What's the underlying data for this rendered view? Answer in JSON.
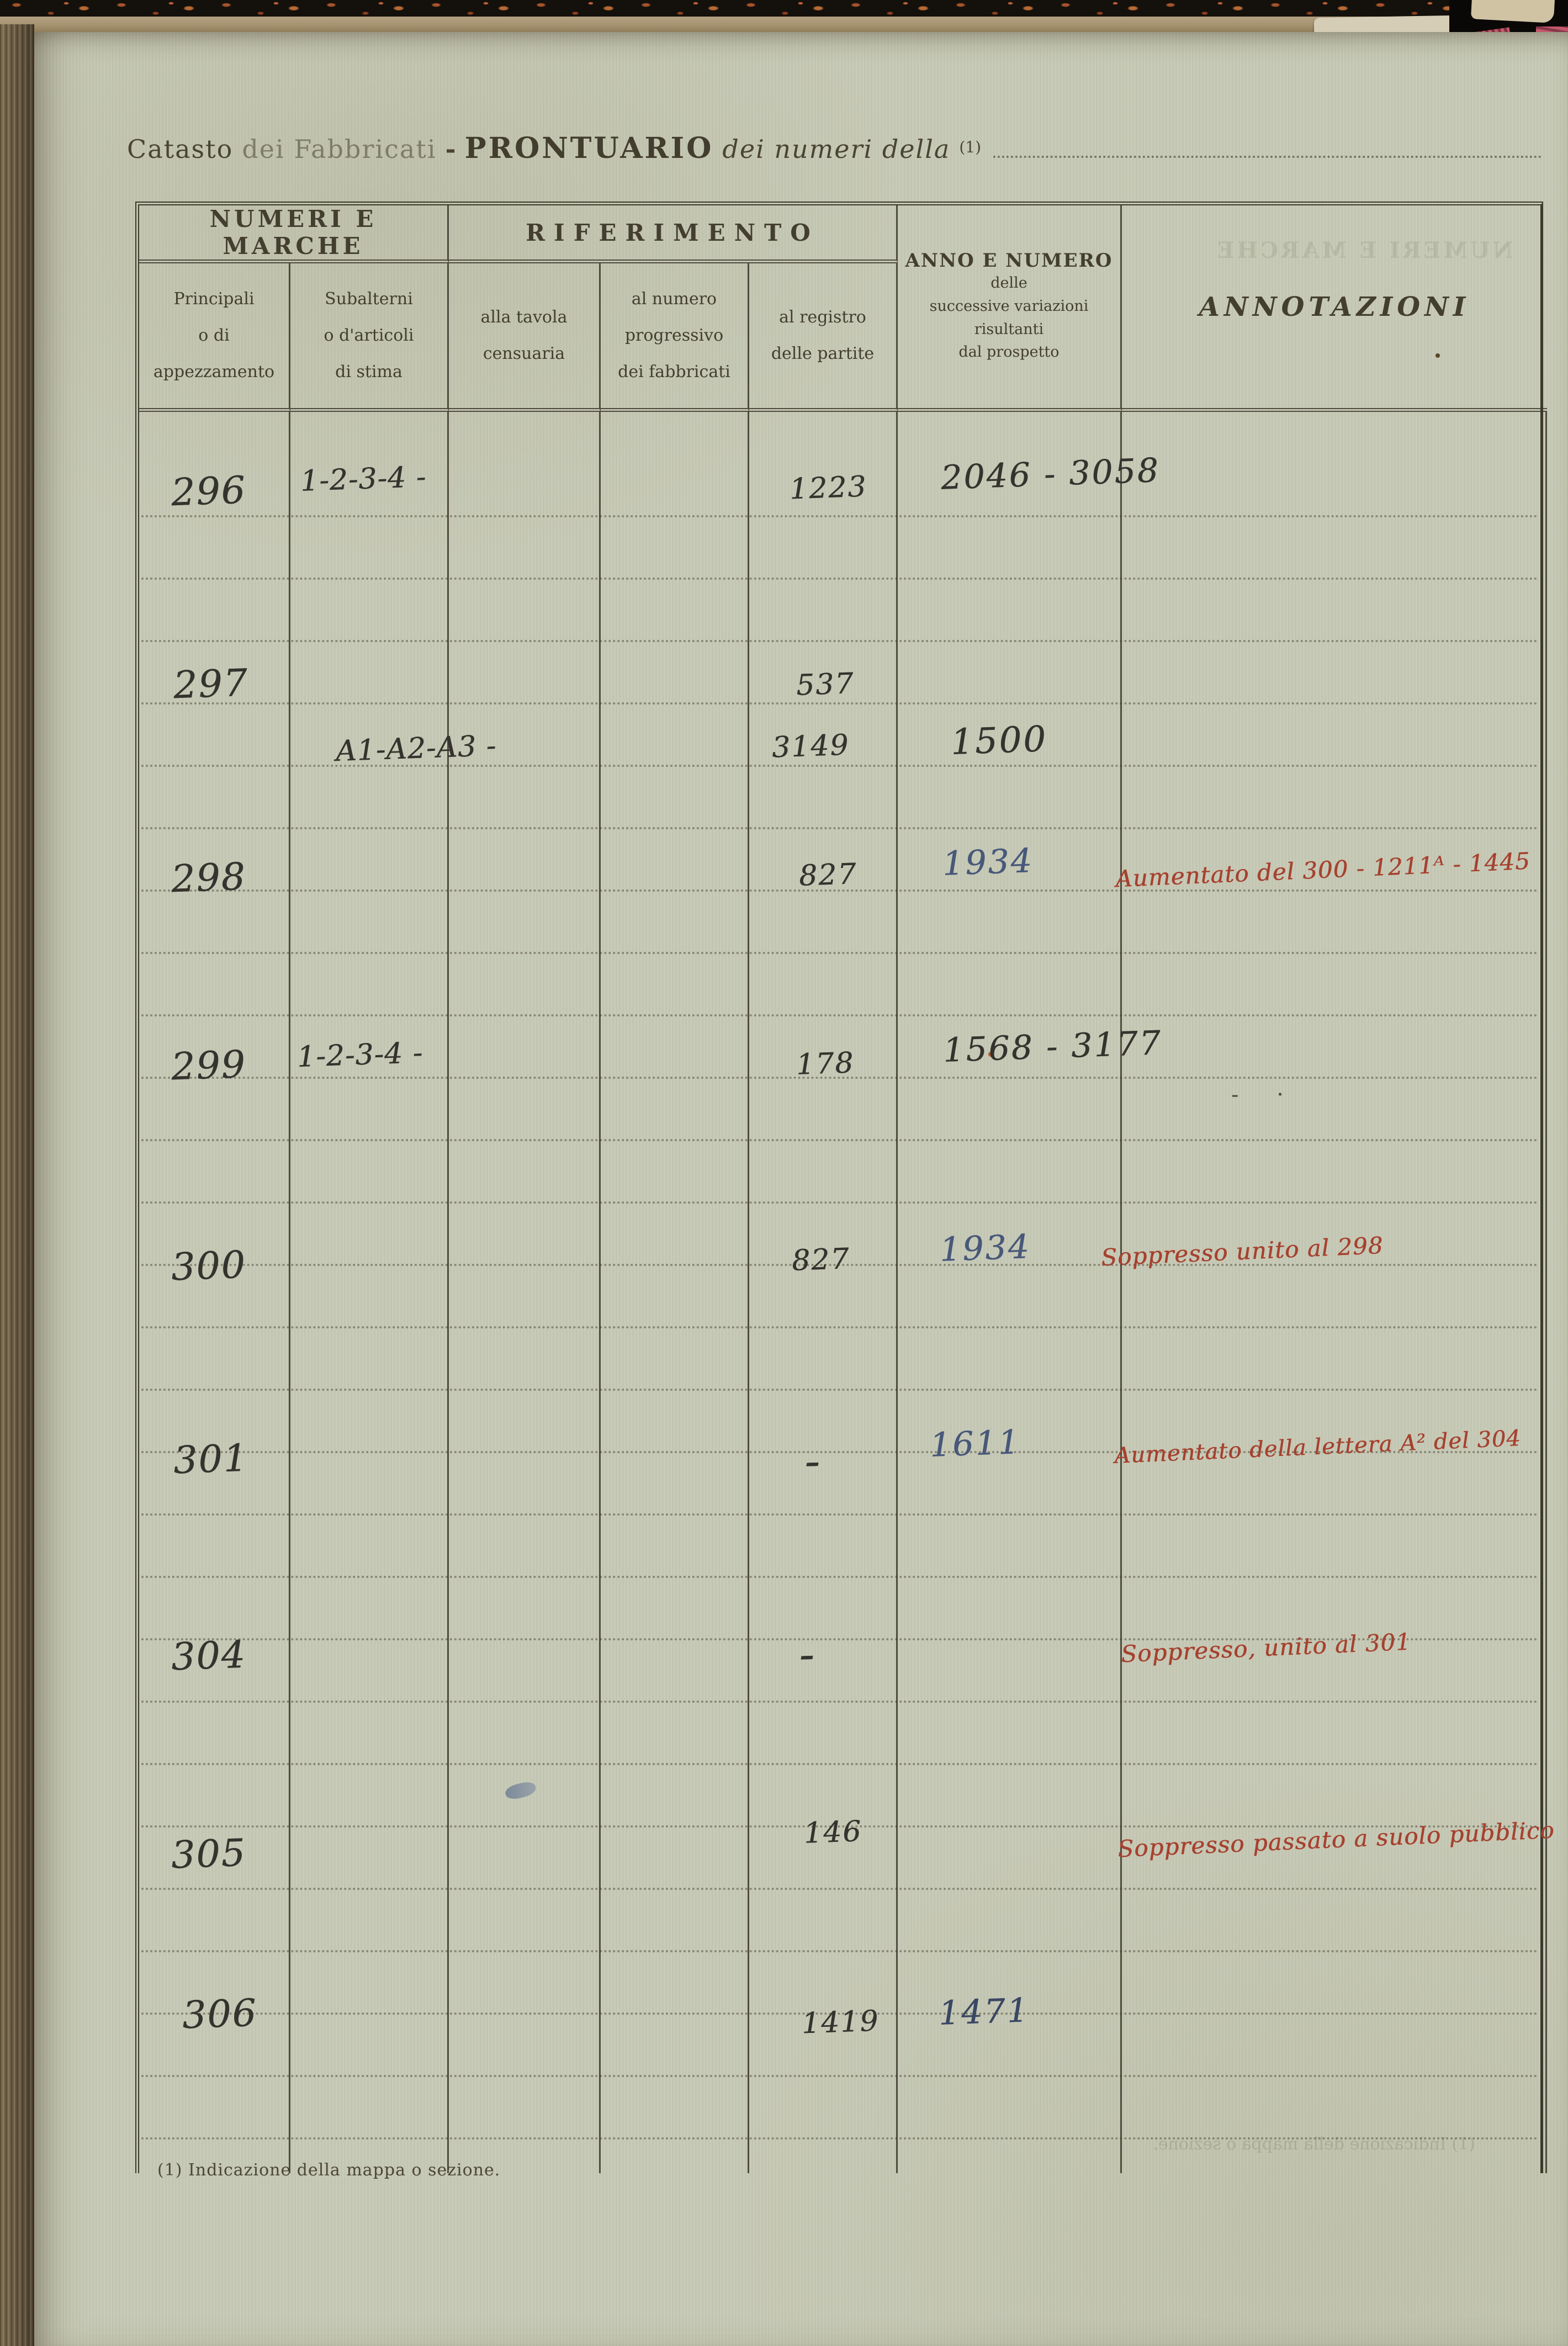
{
  "title": {
    "word1": "Catasto",
    "word2": "dei Fabbricati",
    "dash": "-",
    "main": "PRONTUARIO",
    "suffix": "dei numeri della",
    "ref": "(1)"
  },
  "headers": {
    "numeri_marche": "NUMERI E MARCHE",
    "riferimento": "RIFERIMENTO",
    "anno_title": "ANNO E NUMERO",
    "anno_sub": "delle\nsuccessive variazioni\nrisultanti\ndal prospetto",
    "annotazioni": "ANNOTAZIONI",
    "principali": "Principali\no di\nappezzamento",
    "subalterni": "Subalterni\no d'articoli\ndi stima",
    "tavola": "alla tavola\ncensuaria",
    "progressivo": "al numero\nprogressivo\ndei fabbricati",
    "registro": "al registro\ndelle partite"
  },
  "rows": [
    {
      "principale": "296",
      "subalterni": "1-2-3-4 -",
      "registro": "1223",
      "anno": "2046 - 3058"
    },
    {
      "principale": "297",
      "registro_sopra": "537",
      "subalterni": "A1-A2-A3 -",
      "registro": "3149",
      "anno": "1500"
    },
    {
      "principale": "298",
      "registro": "827",
      "anno": "1934",
      "annotazione": "Aumentato del 300 - 1211ᴬ - 1445"
    },
    {
      "principale": "299",
      "subalterni": "1-2-3-4 -",
      "registro": "178",
      "anno": "1568 - 3177"
    },
    {
      "principale": "300",
      "registro": "827",
      "anno": "1934",
      "annotazione": "Soppresso unito al 298"
    },
    {
      "principale": "301",
      "registro": "–",
      "anno": "1611",
      "annotazione": "Aumentato della lettera A² del 304"
    },
    {
      "principale": "304",
      "registro": "–",
      "annotazione": "Soppresso, unito al 301"
    },
    {
      "principale": "305",
      "registro": "146",
      "annotazione": "Soppresso passato a suolo pubblico"
    },
    {
      "principale": "306",
      "registro": "1419",
      "anno": "1471"
    }
  ],
  "footnote": "(1) Indicazione della mappa o sezione.",
  "ghosts": {
    "header_bleed": "NUMERI E MARCHE",
    "footnote_bleed": "(1) Indicazione della mappa o sezione."
  },
  "stray_mark": "- ·",
  "colors": {
    "paper": "#c6c9b5",
    "print_ink": "#4a4434",
    "hand_ink": "#35332e",
    "blue_ink": "#48587a",
    "red_ink": "#a6412f"
  }
}
